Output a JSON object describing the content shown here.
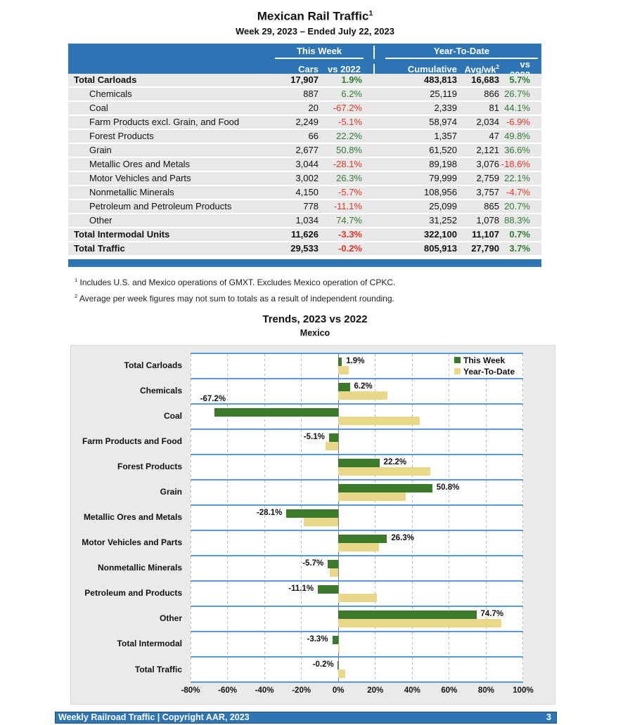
{
  "page": {
    "title": "Mexican Rail Traffic",
    "title_footnote_ref": "1",
    "subtitle": "Week 29, 2023 – Ended July 22, 2023"
  },
  "table": {
    "group_headers": {
      "this_week": "This Week",
      "ytd": "Year-To-Date"
    },
    "columns": [
      "Cars",
      "vs 2022",
      "Cumulative",
      "Avg/wk",
      "vs 2022"
    ],
    "avg_wk_sup": "2",
    "rows": [
      {
        "label": "Total Carloads",
        "bold": true,
        "cars": "17,907",
        "wk_pct": "1.9%",
        "cumulative": "483,813",
        "avg_wk": "16,683",
        "ytd_pct": "5.7%"
      },
      {
        "label": "Chemicals",
        "bold": false,
        "cars": "887",
        "wk_pct": "6.2%",
        "cumulative": "25,119",
        "avg_wk": "866",
        "ytd_pct": "26.7%"
      },
      {
        "label": "Coal",
        "bold": false,
        "cars": "20",
        "wk_pct": "-67.2%",
        "cumulative": "2,339",
        "avg_wk": "81",
        "ytd_pct": "44.1%"
      },
      {
        "label": "Farm Products excl. Grain, and Food",
        "bold": false,
        "cars": "2,249",
        "wk_pct": "-5.1%",
        "cumulative": "58,974",
        "avg_wk": "2,034",
        "ytd_pct": "-6.9%"
      },
      {
        "label": "Forest Products",
        "bold": false,
        "cars": "66",
        "wk_pct": "22.2%",
        "cumulative": "1,357",
        "avg_wk": "47",
        "ytd_pct": "49.8%"
      },
      {
        "label": "Grain",
        "bold": false,
        "cars": "2,677",
        "wk_pct": "50.8%",
        "cumulative": "61,520",
        "avg_wk": "2,121",
        "ytd_pct": "36.6%"
      },
      {
        "label": "Metallic Ores and Metals",
        "bold": false,
        "cars": "3,044",
        "wk_pct": "-28.1%",
        "cumulative": "89,198",
        "avg_wk": "3,076",
        "ytd_pct": "-18.6%"
      },
      {
        "label": "Motor Vehicles and Parts",
        "bold": false,
        "cars": "3,002",
        "wk_pct": "26.3%",
        "cumulative": "79,999",
        "avg_wk": "2,759",
        "ytd_pct": "22.1%"
      },
      {
        "label": "Nonmetallic Minerals",
        "bold": false,
        "cars": "4,150",
        "wk_pct": "-5.7%",
        "cumulative": "108,956",
        "avg_wk": "3,757",
        "ytd_pct": "-4.7%"
      },
      {
        "label": "Petroleum and Petroleum Products",
        "bold": false,
        "cars": "778",
        "wk_pct": "-11.1%",
        "cumulative": "25,099",
        "avg_wk": "865",
        "ytd_pct": "20.7%"
      },
      {
        "label": "Other",
        "bold": false,
        "cars": "1,034",
        "wk_pct": "74.7%",
        "cumulative": "31,252",
        "avg_wk": "1,078",
        "ytd_pct": "88.3%"
      },
      {
        "label": "Total Intermodal Units",
        "bold": true,
        "cars": "11,626",
        "wk_pct": "-3.3%",
        "cumulative": "322,100",
        "avg_wk": "11,107",
        "ytd_pct": "0.7%"
      },
      {
        "label": "Total Traffic",
        "bold": true,
        "cars": "29,533",
        "wk_pct": "-0.2%",
        "cumulative": "805,913",
        "avg_wk": "27,790",
        "ytd_pct": "3.7%"
      }
    ]
  },
  "footnotes": [
    {
      "sup": "1",
      "text": "Includes U.S. and Mexico operations of GMXT. Excludes Mexico operation of CPKC."
    },
    {
      "sup": "2",
      "text": "Average per week figures may not sum to totals as a result of independent rounding."
    }
  ],
  "chart_data": {
    "type": "bar",
    "orientation": "horizontal",
    "title": "Trends, 2023 vs 2022",
    "subtitle": "Mexico",
    "categories": [
      "Total Carloads",
      "Chemicals",
      "Coal",
      "Farm Products and Food",
      "Forest Products",
      "Grain",
      "Metallic Ores and Metals",
      "Motor Vehicles and Parts",
      "Nonmetallic Minerals",
      "Petroleum and Products",
      "Other",
      "Total Intermodal",
      "Total Traffic"
    ],
    "series": [
      {
        "name": "This Week",
        "color": "#3b7a2b",
        "values": [
          1.9,
          6.2,
          -67.2,
          -5.1,
          22.2,
          50.8,
          -28.1,
          26.3,
          -5.7,
          -11.1,
          74.7,
          -3.3,
          -0.2
        ]
      },
      {
        "name": "Year-To-Date",
        "color": "#e9d78a",
        "values": [
          5.7,
          26.7,
          44.1,
          -6.9,
          49.8,
          36.6,
          -18.6,
          22.1,
          -4.7,
          20.7,
          88.3,
          0.7,
          3.7
        ]
      }
    ],
    "data_labels": [
      "1.9%",
      "6.2%",
      "-67.2%",
      "-5.1%",
      "22.2%",
      "50.8%",
      "-28.1%",
      "26.3%",
      "-5.7%",
      "-11.1%",
      "74.7%",
      "-3.3%",
      "-0.2%"
    ],
    "xlim": [
      -80,
      100
    ],
    "x_ticks": [
      "-80%",
      "-60%",
      "-40%",
      "-20%",
      "0%",
      "20%",
      "40%",
      "60%",
      "80%",
      "100%"
    ],
    "legend": [
      "This Week",
      "Year-To-Date"
    ],
    "legend_position": "top-right",
    "grid": "dashed-vertical",
    "separator_color": "#5b9bd5"
  },
  "footer": {
    "left": "Weekly Railroad Traffic | Copyright AAR, 2023",
    "page_number": "3"
  }
}
